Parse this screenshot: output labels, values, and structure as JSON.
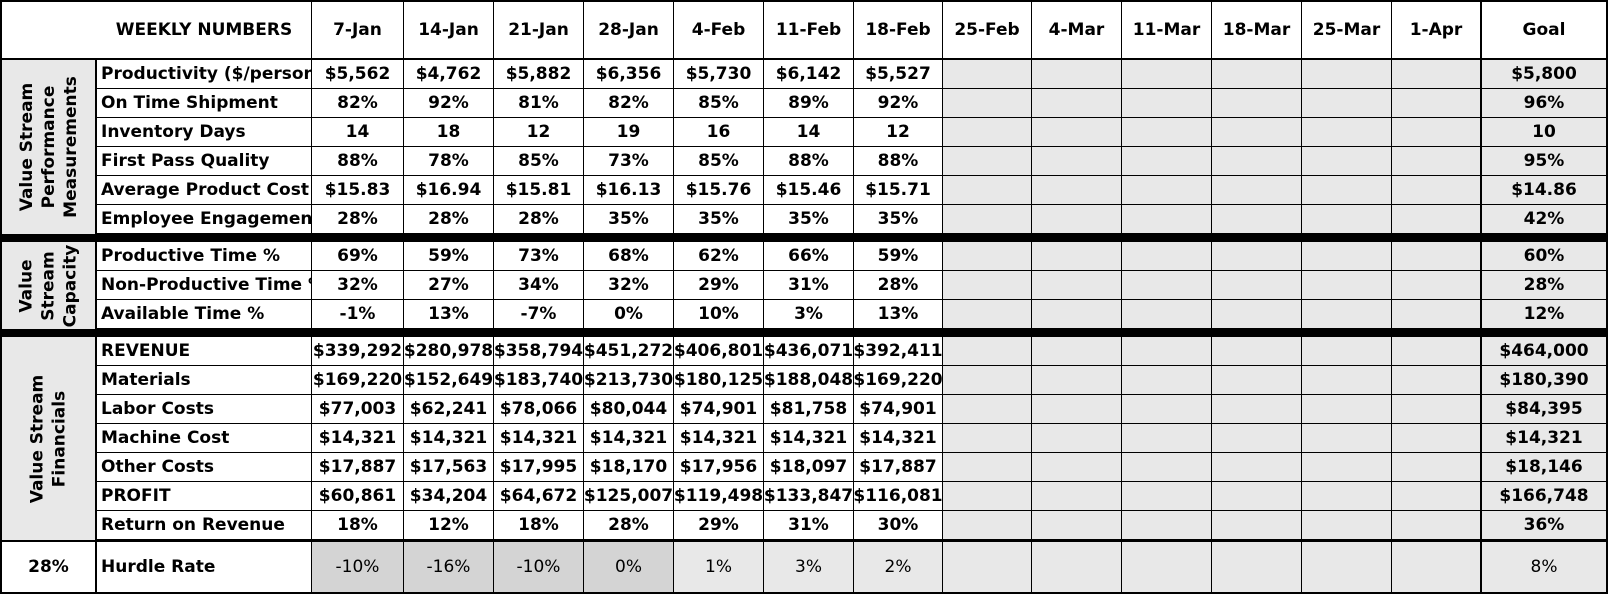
{
  "header": {
    "title": "WEEKLY NUMBERS",
    "dates": [
      "7-Jan",
      "14-Jan",
      "21-Jan",
      "28-Jan",
      "4-Feb",
      "11-Feb",
      "18-Feb",
      "25-Feb",
      "4-Mar",
      "11-Mar",
      "18-Mar",
      "25-Mar",
      "1-Apr"
    ],
    "goal_label": "Goal"
  },
  "sections": [
    {
      "label_lines": [
        "Value Stream",
        "Performance",
        "Measurements"
      ],
      "rows": [
        {
          "label": "Productivity ($/person)",
          "values": [
            "$5,562",
            "$4,762",
            "$5,882",
            "$6,356",
            "$5,730",
            "$6,142",
            "$5,527"
          ],
          "goal": "$5,800"
        },
        {
          "label": "On Time Shipment",
          "values": [
            "82%",
            "92%",
            "81%",
            "82%",
            "85%",
            "89%",
            "92%"
          ],
          "goal": "96%"
        },
        {
          "label": "Inventory Days",
          "values": [
            "14",
            "18",
            "12",
            "19",
            "16",
            "14",
            "12"
          ],
          "goal": "10"
        },
        {
          "label": "First Pass Quality",
          "values": [
            "88%",
            "78%",
            "85%",
            "73%",
            "85%",
            "88%",
            "88%"
          ],
          "goal": "95%"
        },
        {
          "label": "Average Product Cost",
          "values": [
            "$15.83",
            "$16.94",
            "$15.81",
            "$16.13",
            "$15.76",
            "$15.46",
            "$15.71"
          ],
          "goal": "$14.86"
        },
        {
          "label": "Employee Engagement",
          "values": [
            "28%",
            "28%",
            "28%",
            "35%",
            "35%",
            "35%",
            "35%"
          ],
          "goal": "42%"
        }
      ]
    },
    {
      "label_lines": [
        "Value",
        "Stream",
        "Capacity"
      ],
      "rows": [
        {
          "label": "Productive Time %",
          "values": [
            "69%",
            "59%",
            "73%",
            "68%",
            "62%",
            "66%",
            "59%"
          ],
          "goal": "60%"
        },
        {
          "label": "Non-Productive Time %",
          "values": [
            "32%",
            "27%",
            "34%",
            "32%",
            "29%",
            "31%",
            "28%"
          ],
          "goal": "28%"
        },
        {
          "label": "Available Time %",
          "values": [
            "-1%",
            "13%",
            "-7%",
            "0%",
            "10%",
            "3%",
            "13%"
          ],
          "goal": "12%"
        }
      ]
    },
    {
      "label_lines": [
        "Value Stream",
        "Financials"
      ],
      "rows": [
        {
          "label": "REVENUE",
          "values": [
            "$339,292",
            "$280,978",
            "$358,794",
            "$451,272",
            "$406,801",
            "$436,071",
            "$392,411"
          ],
          "goal": "$464,000"
        },
        {
          "label": "Materials",
          "values": [
            "$169,220",
            "$152,649",
            "$183,740",
            "$213,730",
            "$180,125",
            "$188,048",
            "$169,220"
          ],
          "goal": "$180,390"
        },
        {
          "label": "Labor Costs",
          "values": [
            "$77,003",
            "$62,241",
            "$78,066",
            "$80,044",
            "$74,901",
            "$81,758",
            "$74,901"
          ],
          "goal": "$84,395"
        },
        {
          "label": "Machine Cost",
          "values": [
            "$14,321",
            "$14,321",
            "$14,321",
            "$14,321",
            "$14,321",
            "$14,321",
            "$14,321"
          ],
          "goal": "$14,321"
        },
        {
          "label": "Other Costs",
          "values": [
            "$17,887",
            "$17,563",
            "$17,995",
            "$18,170",
            "$17,956",
            "$18,097",
            "$17,887"
          ],
          "goal": "$18,146"
        },
        {
          "label": "PROFIT",
          "values": [
            "$60,861",
            "$34,204",
            "$64,672",
            "$125,007",
            "$119,498",
            "$133,847",
            "$116,081"
          ],
          "goal": "$166,748"
        },
        {
          "label": "Return on Revenue",
          "values": [
            "18%",
            "12%",
            "18%",
            "28%",
            "29%",
            "31%",
            "30%"
          ],
          "goal": "36%"
        }
      ]
    }
  ],
  "hurdle": {
    "rate": "28%",
    "label": "Hurdle Rate",
    "values": [
      "-10%",
      "-16%",
      "-10%",
      "0%",
      "1%",
      "3%",
      "2%"
    ],
    "goal": "8%"
  }
}
